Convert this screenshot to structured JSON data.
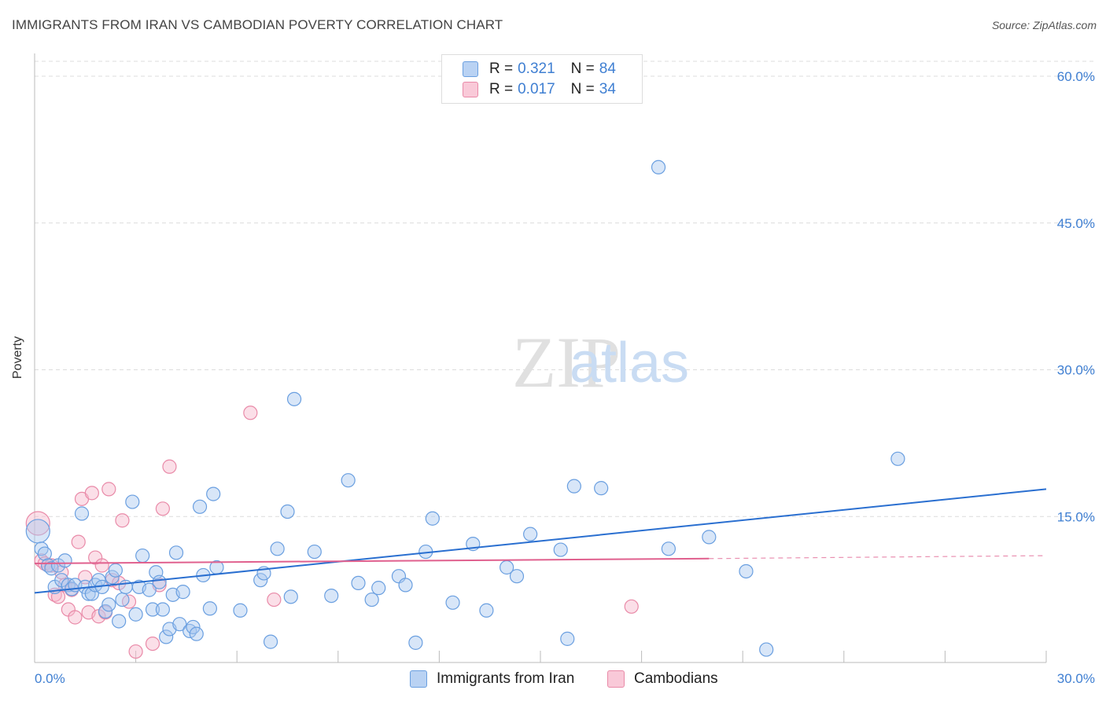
{
  "header": {
    "title": "IMMIGRANTS FROM IRAN VS CAMBODIAN POVERTY CORRELATION CHART",
    "source": "Source: ZipAtlas.com"
  },
  "watermark": {
    "zip": "ZIP",
    "atlas": "atlas"
  },
  "legend": {
    "rows": [
      {
        "r_label": "R =",
        "r_value": "0.321",
        "n_label": "N =",
        "n_value": "84"
      },
      {
        "r_label": "R =",
        "r_value": "0.017",
        "n_label": "N =",
        "n_value": "34"
      }
    ]
  },
  "colors": {
    "iran_fill": "#a9c8f0",
    "iran_stroke": "#6a9fe0",
    "iran_line": "#2a6fd0",
    "camb_fill": "#f7b8cc",
    "camb_stroke": "#e98aa8",
    "camb_line": "#e0608e",
    "tick_text": "#3f7fd2"
  },
  "chart_data": {
    "type": "scatter",
    "title": "IMMIGRANTS FROM IRAN VS CAMBODIAN POVERTY CORRELATION CHART",
    "xlabel": "",
    "ylabel": "Poverty",
    "xlim": [
      0,
      30
    ],
    "ylim": [
      0,
      60
    ],
    "x_tick_labels": [
      "0.0%",
      "30.0%"
    ],
    "y_tick_values": [
      15,
      30,
      45,
      60
    ],
    "y_tick_labels": [
      "15.0%",
      "30.0%",
      "45.0%",
      "60.0%"
    ],
    "grid": true,
    "legend_position": "top-center",
    "series": [
      {
        "name": "Immigrants from Iran",
        "r": 0.321,
        "n": 84,
        "trend": {
          "x0": 0,
          "y0": 7.2,
          "x1": 30,
          "y1": 17.8
        },
        "points": [
          [
            0.1,
            13.5
          ],
          [
            0.2,
            11.7
          ],
          [
            0.3,
            11.2
          ],
          [
            0.4,
            10.0
          ],
          [
            0.5,
            9.7
          ],
          [
            0.6,
            7.8
          ],
          [
            0.7,
            10.0
          ],
          [
            0.8,
            8.5
          ],
          [
            0.9,
            10.5
          ],
          [
            1.0,
            8.0
          ],
          [
            1.1,
            7.6
          ],
          [
            1.2,
            8.0
          ],
          [
            1.4,
            15.3
          ],
          [
            1.5,
            7.8
          ],
          [
            1.6,
            7.1
          ],
          [
            1.7,
            7.1
          ],
          [
            1.8,
            8.0
          ],
          [
            1.9,
            8.5
          ],
          [
            2.0,
            7.8
          ],
          [
            2.1,
            5.3
          ],
          [
            2.2,
            6.0
          ],
          [
            2.3,
            8.8
          ],
          [
            2.4,
            9.5
          ],
          [
            2.5,
            4.3
          ],
          [
            2.6,
            6.5
          ],
          [
            2.7,
            7.8
          ],
          [
            2.9,
            16.5
          ],
          [
            3.0,
            5.0
          ],
          [
            3.1,
            7.8
          ],
          [
            3.2,
            11.0
          ],
          [
            3.4,
            7.5
          ],
          [
            3.5,
            5.5
          ],
          [
            3.6,
            9.3
          ],
          [
            3.7,
            8.3
          ],
          [
            3.8,
            5.5
          ],
          [
            3.9,
            2.7
          ],
          [
            4.0,
            3.5
          ],
          [
            4.1,
            7.0
          ],
          [
            4.2,
            11.3
          ],
          [
            4.3,
            4.0
          ],
          [
            4.4,
            7.3
          ],
          [
            4.6,
            3.3
          ],
          [
            4.7,
            3.7
          ],
          [
            4.8,
            3.0
          ],
          [
            4.9,
            16.0
          ],
          [
            5.0,
            9.0
          ],
          [
            5.2,
            5.6
          ],
          [
            5.3,
            17.3
          ],
          [
            5.4,
            9.8
          ],
          [
            6.1,
            5.4
          ],
          [
            6.7,
            8.5
          ],
          [
            6.8,
            9.2
          ],
          [
            7.0,
            2.2
          ],
          [
            7.2,
            11.7
          ],
          [
            7.5,
            15.5
          ],
          [
            7.6,
            6.8
          ],
          [
            7.7,
            27.0
          ],
          [
            8.3,
            11.4
          ],
          [
            8.8,
            6.9
          ],
          [
            9.3,
            18.7
          ],
          [
            9.6,
            8.2
          ],
          [
            10.0,
            6.5
          ],
          [
            10.2,
            7.7
          ],
          [
            10.8,
            8.9
          ],
          [
            11.0,
            8.0
          ],
          [
            11.3,
            2.1
          ],
          [
            11.6,
            11.4
          ],
          [
            11.8,
            14.8
          ],
          [
            12.4,
            6.2
          ],
          [
            13.0,
            12.2
          ],
          [
            13.4,
            5.4
          ],
          [
            14.0,
            9.8
          ],
          [
            14.3,
            8.9
          ],
          [
            14.7,
            13.2
          ],
          [
            15.6,
            11.6
          ],
          [
            15.8,
            2.5
          ],
          [
            16.0,
            18.1
          ],
          [
            16.8,
            17.9
          ],
          [
            18.5,
            50.7
          ],
          [
            18.8,
            11.7
          ],
          [
            20.0,
            12.9
          ],
          [
            21.1,
            9.4
          ],
          [
            21.7,
            1.4
          ],
          [
            25.6,
            20.9
          ]
        ]
      },
      {
        "name": "Cambodians",
        "r": 0.017,
        "n": 34,
        "trend": {
          "x0": 0,
          "y0": 10.2,
          "x1": 20.0,
          "y1": 10.7
        },
        "trend_dashed_to": {
          "x": 30,
          "y": 11.0
        },
        "points": [
          [
            0.1,
            14.3
          ],
          [
            0.2,
            10.5
          ],
          [
            0.3,
            10.2
          ],
          [
            0.4,
            10.0
          ],
          [
            0.5,
            10.0
          ],
          [
            0.6,
            7.0
          ],
          [
            0.7,
            6.8
          ],
          [
            0.8,
            9.3
          ],
          [
            0.9,
            8.0
          ],
          [
            1.0,
            5.5
          ],
          [
            1.1,
            7.5
          ],
          [
            1.2,
            4.7
          ],
          [
            1.3,
            12.4
          ],
          [
            1.4,
            16.8
          ],
          [
            1.5,
            8.8
          ],
          [
            1.6,
            5.2
          ],
          [
            1.7,
            17.4
          ],
          [
            1.8,
            10.8
          ],
          [
            1.9,
            4.8
          ],
          [
            2.0,
            10.0
          ],
          [
            2.1,
            5.2
          ],
          [
            2.2,
            17.8
          ],
          [
            2.3,
            8.5
          ],
          [
            2.5,
            8.2
          ],
          [
            2.6,
            14.6
          ],
          [
            2.8,
            6.3
          ],
          [
            3.0,
            1.2
          ],
          [
            3.5,
            2.0
          ],
          [
            3.7,
            8.0
          ],
          [
            3.8,
            15.8
          ],
          [
            4.0,
            20.1
          ],
          [
            6.4,
            25.6
          ],
          [
            7.1,
            6.5
          ],
          [
            17.7,
            5.8
          ]
        ]
      }
    ]
  },
  "bottom_legend": {
    "items": [
      "Immigrants from Iran",
      "Cambodians"
    ]
  }
}
